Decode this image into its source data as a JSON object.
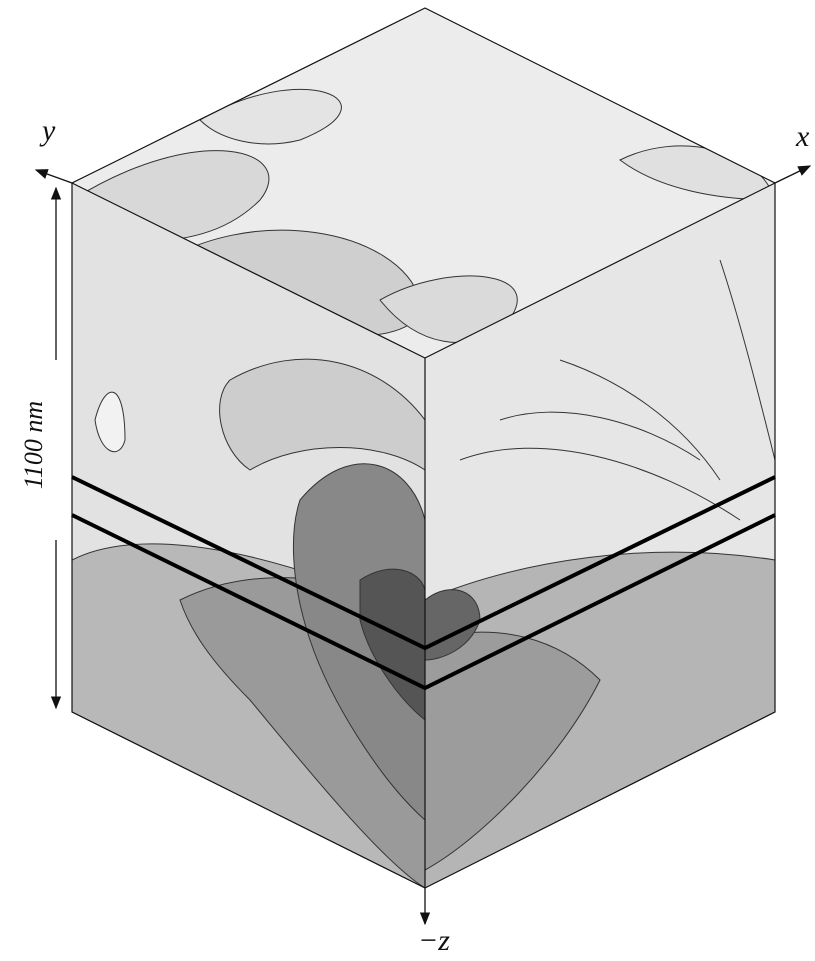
{
  "axes": {
    "y": "y",
    "x": "x",
    "z": "−z"
  },
  "dimension": {
    "label": "1100 nm"
  }
}
